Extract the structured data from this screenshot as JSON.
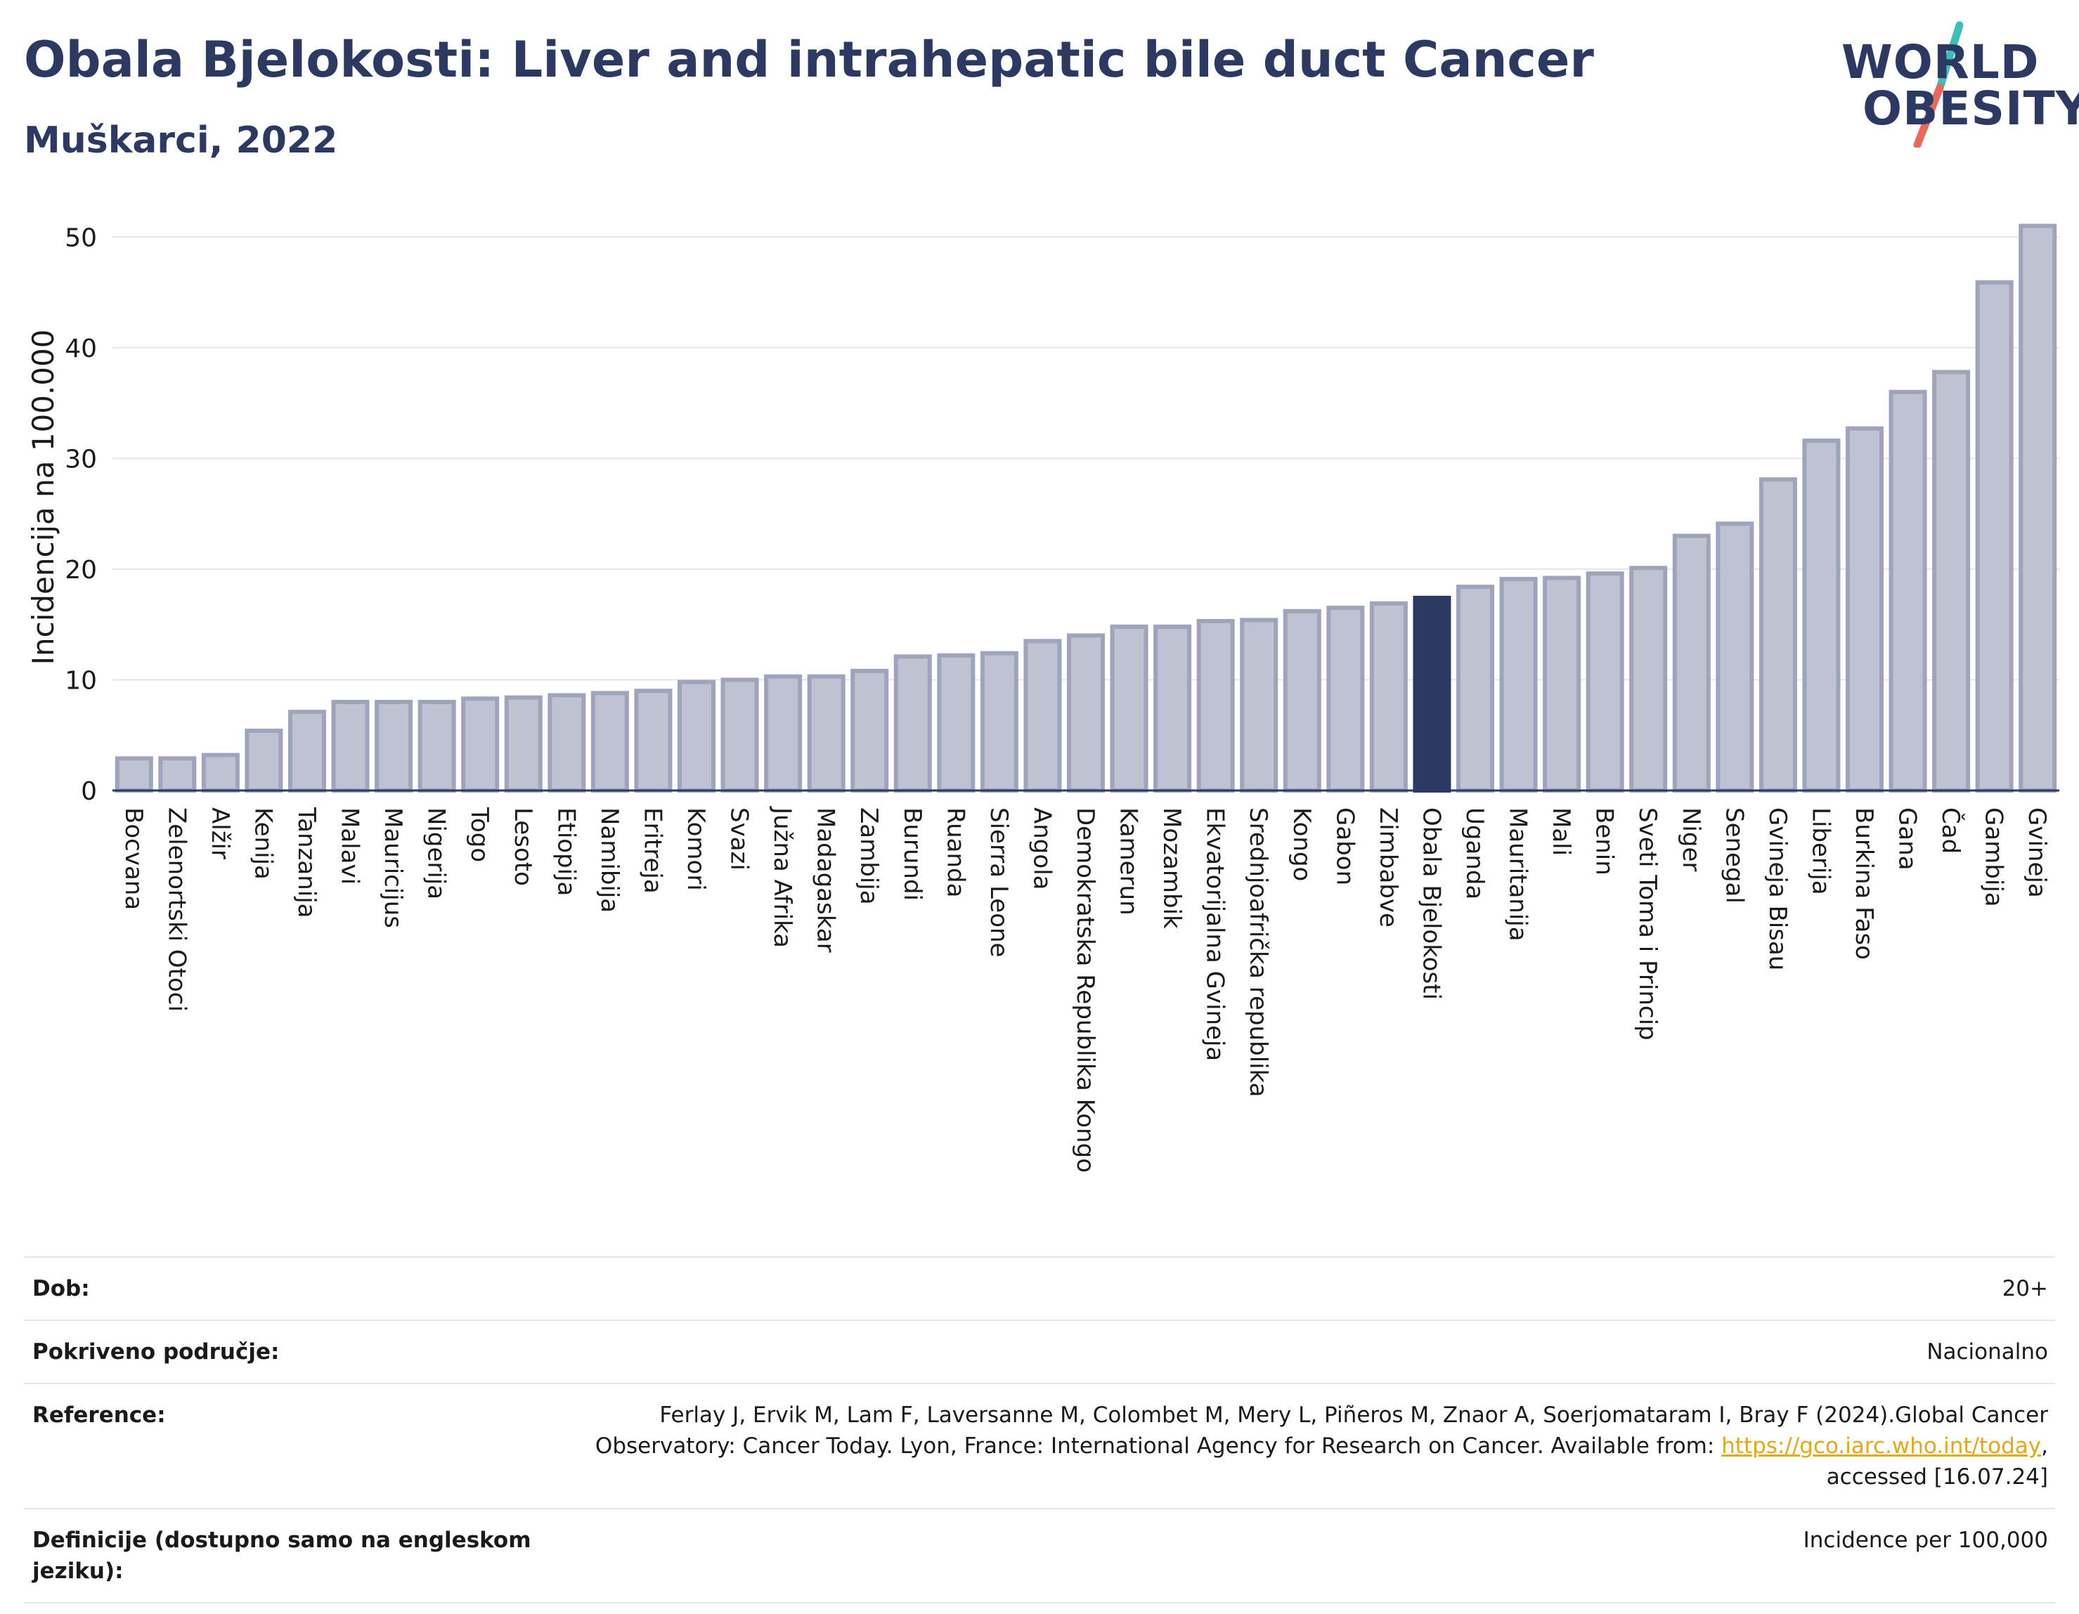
{
  "header": {
    "title": "Obala Bjelokosti: Liver and intrahepatic bile duct Cancer",
    "subtitle": "Muškarci, 2022"
  },
  "logo": {
    "line1": "WORLD",
    "line2": "OBESITY",
    "slash_top_color": "#3dbfb8",
    "slash_bottom_color": "#e8685a"
  },
  "colors": {
    "bar_fill": "#bfc3d1",
    "bar_stroke": "#9ea4bb",
    "highlight": "#2c3a63",
    "grid": "#e5e5e5"
  },
  "chart_data": {
    "type": "bar",
    "title": "Obala Bjelokosti: Liver and intrahepatic bile duct Cancer",
    "subtitle": "Muškarci, 2022",
    "ylabel": "Incidencija na 100.000",
    "xlabel": "",
    "ylim": [
      0,
      53
    ],
    "yticks": [
      0,
      10,
      20,
      30,
      40,
      50
    ],
    "grid": true,
    "highlight": "Obala Bjelokosti",
    "categories": [
      "Bocvana",
      "Zelenortski Otoci",
      "Alžir",
      "Kenija",
      "Tanzanija",
      "Malavi",
      "Mauricijus",
      "Nigerija",
      "Togo",
      "Lesoto",
      "Etiopija",
      "Namibija",
      "Eritreja",
      "Komori",
      "Svazi",
      "Južna Afrika",
      "Madagaskar",
      "Zambija",
      "Burundi",
      "Ruanda",
      "Sierra Leone",
      "Angola",
      "Demokratska Republika Kongo",
      "Kamerun",
      "Mozambik",
      "Ekvatorijalna Gvineja",
      "Srednjoafrička republika",
      "Kongo",
      "Gabon",
      "Zimbabve",
      "Obala Bjelokosti",
      "Uganda",
      "Mauritanija",
      "Mali",
      "Benin",
      "Sveti Toma i Princip",
      "Niger",
      "Senegal",
      "Gvineja Bisau",
      "Liberija",
      "Burkina Faso",
      "Gana",
      "Čad",
      "Gambija",
      "Gvineja"
    ],
    "values": [
      2.9,
      2.9,
      3.2,
      5.4,
      7.1,
      8.0,
      8.0,
      8.0,
      8.3,
      8.4,
      8.6,
      8.8,
      9.0,
      9.8,
      10.0,
      10.3,
      10.3,
      10.8,
      12.1,
      12.2,
      12.4,
      13.5,
      14.0,
      14.8,
      14.8,
      15.3,
      15.4,
      16.2,
      16.5,
      16.9,
      17.4,
      18.4,
      19.1,
      19.2,
      19.6,
      20.1,
      23.0,
      24.1,
      28.1,
      31.6,
      32.7,
      36.0,
      37.8,
      45.9,
      51.0
    ]
  },
  "meta": [
    {
      "key": "Dob:",
      "value": "20+"
    },
    {
      "key": "Pokriveno područje:",
      "value": "Nacionalno"
    },
    {
      "key": "Reference:",
      "value_before": "Ferlay J, Ervik M, Lam F, Laversanne M, Colombet M, Mery L, Piñeros M, Znaor A, Soerjomataram I, Bray F (2024).Global Cancer Observatory: Cancer Today. Lyon, France: International Agency for Research on Cancer. Available from: ",
      "link": "https://gco.iarc.who.int/today",
      "value_after": ", accessed [16.07.24]"
    },
    {
      "key": "Definicije (dostupno samo na engleskom jeziku):",
      "value": "Incidence per 100,000"
    }
  ]
}
